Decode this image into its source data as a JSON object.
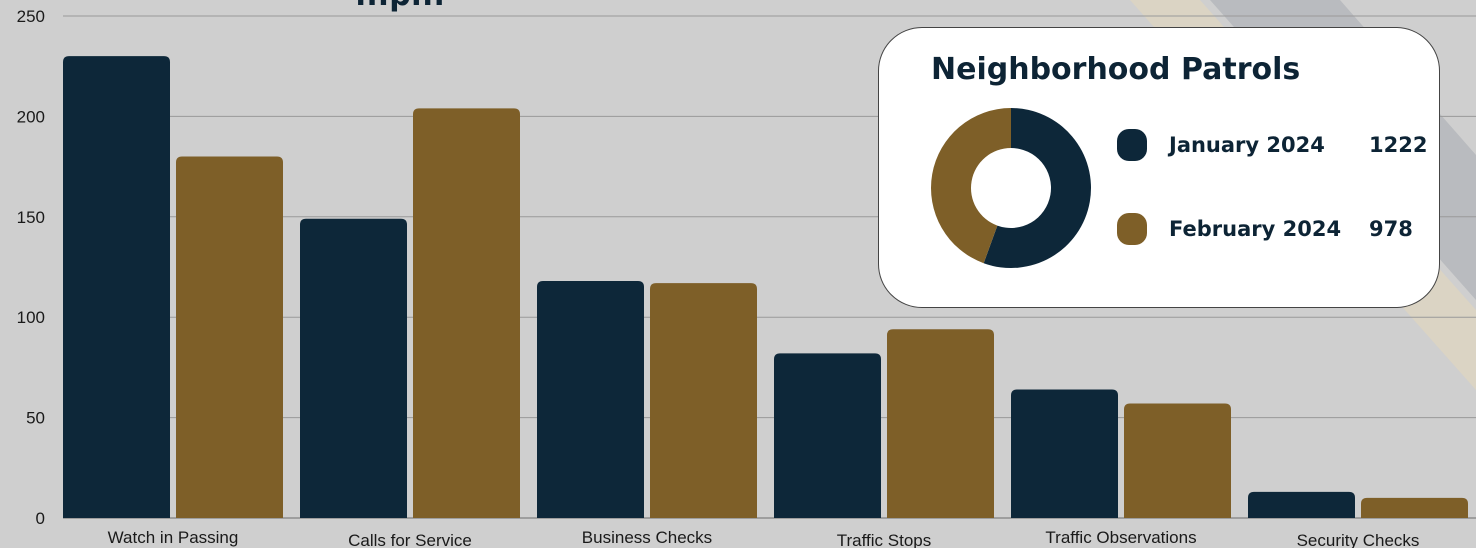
{
  "title_partial": "...p...",
  "colors": {
    "january": "#0d2739",
    "february": "#7e5f28",
    "background": "#cfcfcf"
  },
  "chart_data": {
    "type": "bar",
    "categories": [
      "Watch in Passing",
      "Calls for Service",
      "Business Checks",
      "Traffic Stops",
      "Traffic Observations",
      "Security Checks"
    ],
    "series": [
      {
        "name": "January 2024",
        "values": [
          230,
          149,
          118,
          82,
          64,
          13
        ]
      },
      {
        "name": "February 2024",
        "values": [
          180,
          204,
          117,
          94,
          57,
          10
        ]
      }
    ],
    "ylim": [
      0,
      250
    ],
    "yticks": [
      "0",
      "50",
      "100",
      "150",
      "200",
      "250"
    ],
    "grid": true,
    "legend_placement": "top-right"
  },
  "neighborhood_patrols": {
    "title": "Neighborhood Patrols",
    "type": "pie",
    "items": [
      {
        "label": "January 2024",
        "value": 1222
      },
      {
        "label": "February 2024",
        "value": 978
      }
    ]
  }
}
